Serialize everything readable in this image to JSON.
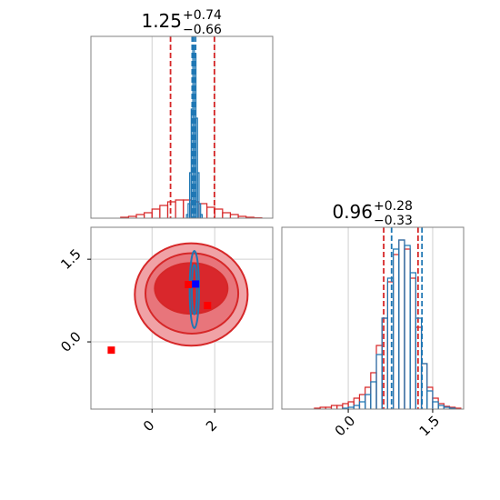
{
  "chart_data": [
    {
      "type": "histogram",
      "title": {
        "value": "1.25",
        "upper": "+0.74",
        "lower": "−0.66"
      },
      "xlim": [
        -1.95,
        3.85
      ],
      "ylim": [
        0,
        1
      ],
      "series": [
        {
          "color": "#d62728",
          "bins": [
            -1.0,
            -0.75,
            -0.5,
            -0.25,
            0.0,
            0.25,
            0.5,
            0.75,
            1.0,
            1.25,
            1.5,
            1.75,
            2.0,
            2.25,
            2.5,
            2.75,
            3.0,
            3.25,
            3.5
          ],
          "values": [
            0.005,
            0.01,
            0.02,
            0.03,
            0.05,
            0.07,
            0.09,
            0.1,
            0.1,
            0.09,
            0.08,
            0.06,
            0.05,
            0.03,
            0.02,
            0.01,
            0.005,
            0.002
          ],
          "quantiles": [
            0.59,
            1.99
          ]
        },
        {
          "color": "#1f77b4",
          "bins": [
            1.1,
            1.15,
            1.2,
            1.25,
            1.3,
            1.35,
            1.4,
            1.45,
            1.5,
            1.55,
            1.6
          ],
          "values": [
            0.02,
            0.08,
            0.25,
            0.6,
            0.95,
            0.9,
            0.55,
            0.25,
            0.08,
            0.02
          ],
          "quantiles": [
            1.28,
            1.33,
            1.39
          ]
        }
      ]
    },
    {
      "type": "contour",
      "xlim": [
        -1.95,
        3.85
      ],
      "ylim": [
        -1.22,
        2.08
      ],
      "xticks": [
        0,
        2
      ],
      "yticks": [
        {
          "value": 0,
          "label": "0.0"
        },
        1.5
      ],
      "series": [
        {
          "color": "#d62728",
          "levels": [
            {
              "cx": 1.25,
              "cy": 0.86,
              "rx": 1.8,
              "ry": 0.93,
              "fill": "#f0a2a6"
            },
            {
              "cx": 1.27,
              "cy": 0.88,
              "rx": 1.48,
              "ry": 0.73,
              "fill": "#e8757b"
            },
            {
              "cx": 1.25,
              "cy": 0.97,
              "rx": 1.16,
              "ry": 0.46,
              "fill": "#d9272c"
            }
          ]
        },
        {
          "color": "#1f77b4",
          "levels": [
            {
              "cx": 1.35,
              "cy": 0.95,
              "rx": 0.15,
              "ry": 0.7,
              "fill": "none"
            },
            {
              "cx": 1.35,
              "cy": 0.95,
              "rx": 0.08,
              "ry": 0.45,
              "fill": "none"
            }
          ]
        }
      ],
      "markers": [
        {
          "color": "#ff0000",
          "x": [
            -1.3,
            1.16,
            1.77
          ],
          "y": [
            -0.15,
            1.04,
            0.66
          ]
        },
        {
          "color": "#0000ff",
          "x": [
            1.39
          ],
          "y": [
            1.05
          ]
        }
      ]
    },
    {
      "type": "histogram",
      "title": {
        "value": "0.96",
        "upper": "+0.28",
        "lower": "−0.33"
      },
      "xlim": [
        -1.18,
        2.05
      ],
      "ylim": [
        0,
        1
      ],
      "xticks": [
        {
          "value": 0,
          "label": "0.0"
        },
        1.5
      ],
      "series": [
        {
          "color": "#d62728",
          "bins": [
            -0.6,
            -0.5,
            -0.4,
            -0.3,
            -0.2,
            -0.1,
            0.0,
            0.1,
            0.2,
            0.3,
            0.4,
            0.5,
            0.6,
            0.7,
            0.8,
            0.9,
            1.0,
            1.1,
            1.2,
            1.3,
            1.4,
            1.5,
            1.6,
            1.7,
            1.8,
            1.9,
            2.0
          ],
          "values": [
            0.005,
            0.01,
            0.01,
            0.02,
            0.02,
            0.03,
            0.04,
            0.06,
            0.08,
            0.12,
            0.2,
            0.35,
            0.5,
            0.7,
            0.85,
            0.93,
            0.88,
            0.72,
            0.45,
            0.25,
            0.12,
            0.06,
            0.03,
            0.015,
            0.01,
            0.005
          ],
          "quantiles": [
            0.63,
            1.24
          ]
        },
        {
          "color": "#1f77b4",
          "bins": [
            -0.1,
            0.0,
            0.1,
            0.2,
            0.3,
            0.4,
            0.5,
            0.6,
            0.7,
            0.8,
            0.9,
            1.0,
            1.1,
            1.2,
            1.3,
            1.4,
            1.5,
            1.6,
            1.7,
            1.8,
            1.9
          ],
          "values": [
            0.005,
            0.01,
            0.02,
            0.04,
            0.08,
            0.15,
            0.3,
            0.5,
            0.72,
            0.88,
            0.93,
            0.9,
            0.75,
            0.5,
            0.25,
            0.1,
            0.04,
            0.02,
            0.01,
            0.005
          ],
          "quantiles": [
            0.77,
            1.31
          ]
        }
      ]
    }
  ]
}
